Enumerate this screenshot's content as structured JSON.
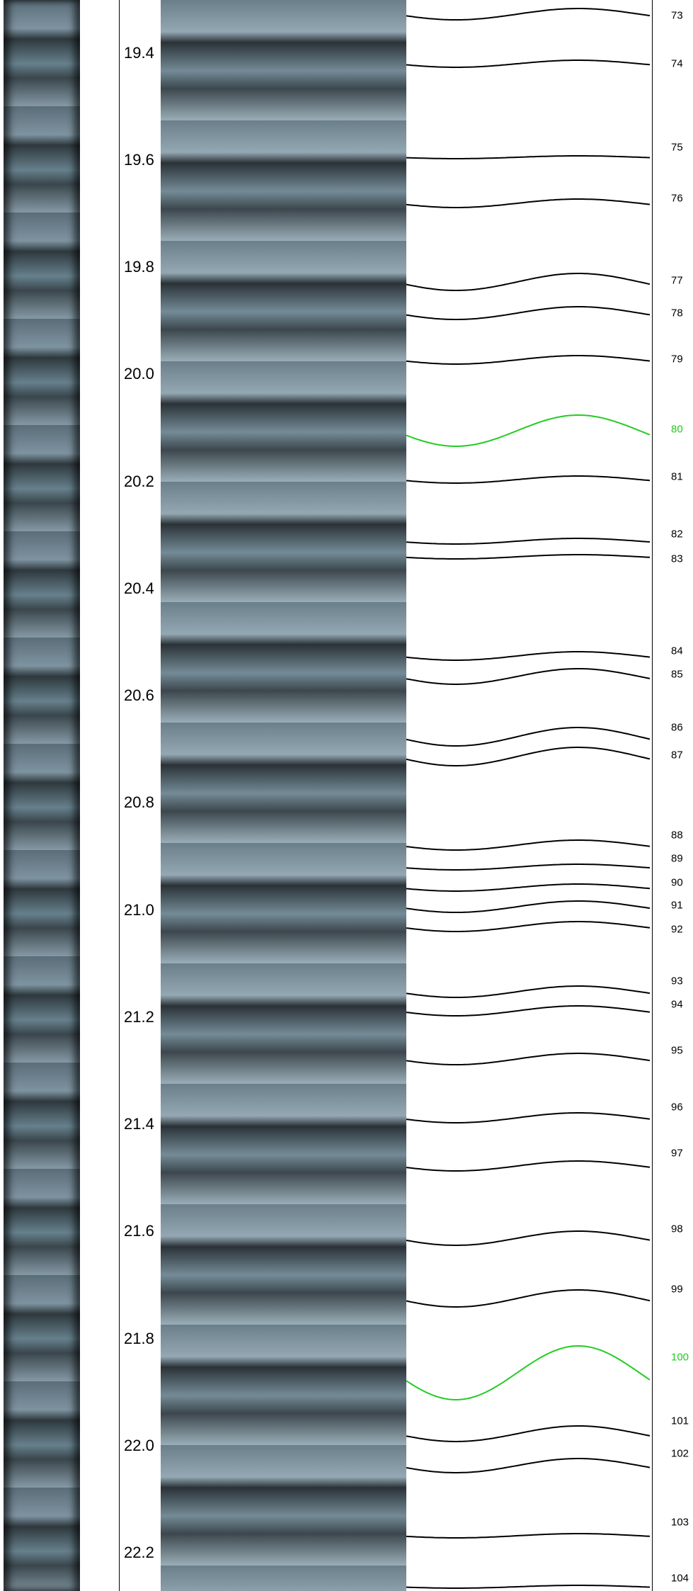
{
  "depth_labels": [
    "19.4",
    "19.6",
    "19.8",
    "20.0",
    "20.2",
    "20.4",
    "20.6",
    "20.8",
    "21.0",
    "21.2",
    "21.4",
    "21.6",
    "21.8",
    "22.0",
    "22.2"
  ],
  "features": [
    {
      "id": "73",
      "highlight": false
    },
    {
      "id": "74",
      "highlight": false
    },
    {
      "id": "75",
      "highlight": false
    },
    {
      "id": "76",
      "highlight": false
    },
    {
      "id": "77",
      "highlight": false
    },
    {
      "id": "78",
      "highlight": false
    },
    {
      "id": "79",
      "highlight": false
    },
    {
      "id": "80",
      "highlight": true
    },
    {
      "id": "81",
      "highlight": false
    },
    {
      "id": "82",
      "highlight": false
    },
    {
      "id": "83",
      "highlight": false
    },
    {
      "id": "84",
      "highlight": false
    },
    {
      "id": "85",
      "highlight": false
    },
    {
      "id": "86",
      "highlight": false
    },
    {
      "id": "87",
      "highlight": false
    },
    {
      "id": "88",
      "highlight": false
    },
    {
      "id": "89",
      "highlight": false
    },
    {
      "id": "90",
      "highlight": false
    },
    {
      "id": "91",
      "highlight": false
    },
    {
      "id": "92",
      "highlight": false
    },
    {
      "id": "93",
      "highlight": false
    },
    {
      "id": "94",
      "highlight": false
    },
    {
      "id": "95",
      "highlight": false
    },
    {
      "id": "96",
      "highlight": false
    },
    {
      "id": "97",
      "highlight": false
    },
    {
      "id": "98",
      "highlight": false
    },
    {
      "id": "99",
      "highlight": false
    },
    {
      "id": "100",
      "highlight": true
    },
    {
      "id": "101",
      "highlight": false
    },
    {
      "id": "102",
      "highlight": false
    },
    {
      "id": "103",
      "highlight": false
    },
    {
      "id": "104",
      "highlight": false
    }
  ],
  "colors": {
    "highlight": "#22cc22",
    "trace": "#000000"
  }
}
